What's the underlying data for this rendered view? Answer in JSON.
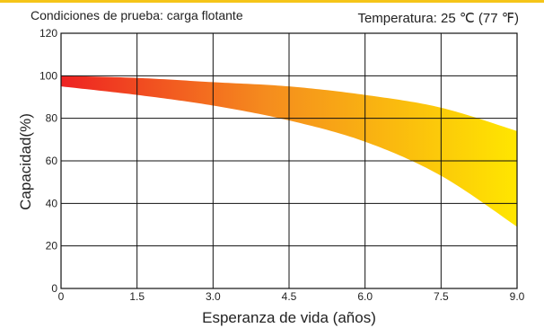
{
  "chart_data": {
    "type": "area",
    "title": "Condiciones de prueba: carga flotante",
    "subtitle": "Temperatura: 25 ℃ (77 ℉)",
    "xlabel": "Esperanza de vida (años)",
    "ylabel": "Capacidad(%)",
    "xlim": [
      0,
      9
    ],
    "ylim": [
      0,
      120
    ],
    "x_ticks": [
      "0",
      "1.5",
      "3.0",
      "4.5",
      "6.0",
      "7.5",
      "9.0"
    ],
    "y_ticks": [
      "0",
      "20",
      "40",
      "60",
      "80",
      "100",
      "120"
    ],
    "grid": true,
    "series": [
      {
        "x": [
          0,
          1.5,
          3.0,
          4.5,
          6.0,
          7.5,
          9.0
        ],
        "upper": [
          100,
          99,
          97,
          95,
          91,
          85,
          74
        ],
        "lower": [
          95,
          91,
          86,
          79,
          69,
          53,
          29
        ]
      }
    ],
    "gradient_colors": [
      "#ee2222",
      "#f58c1e",
      "#ffe600"
    ]
  }
}
